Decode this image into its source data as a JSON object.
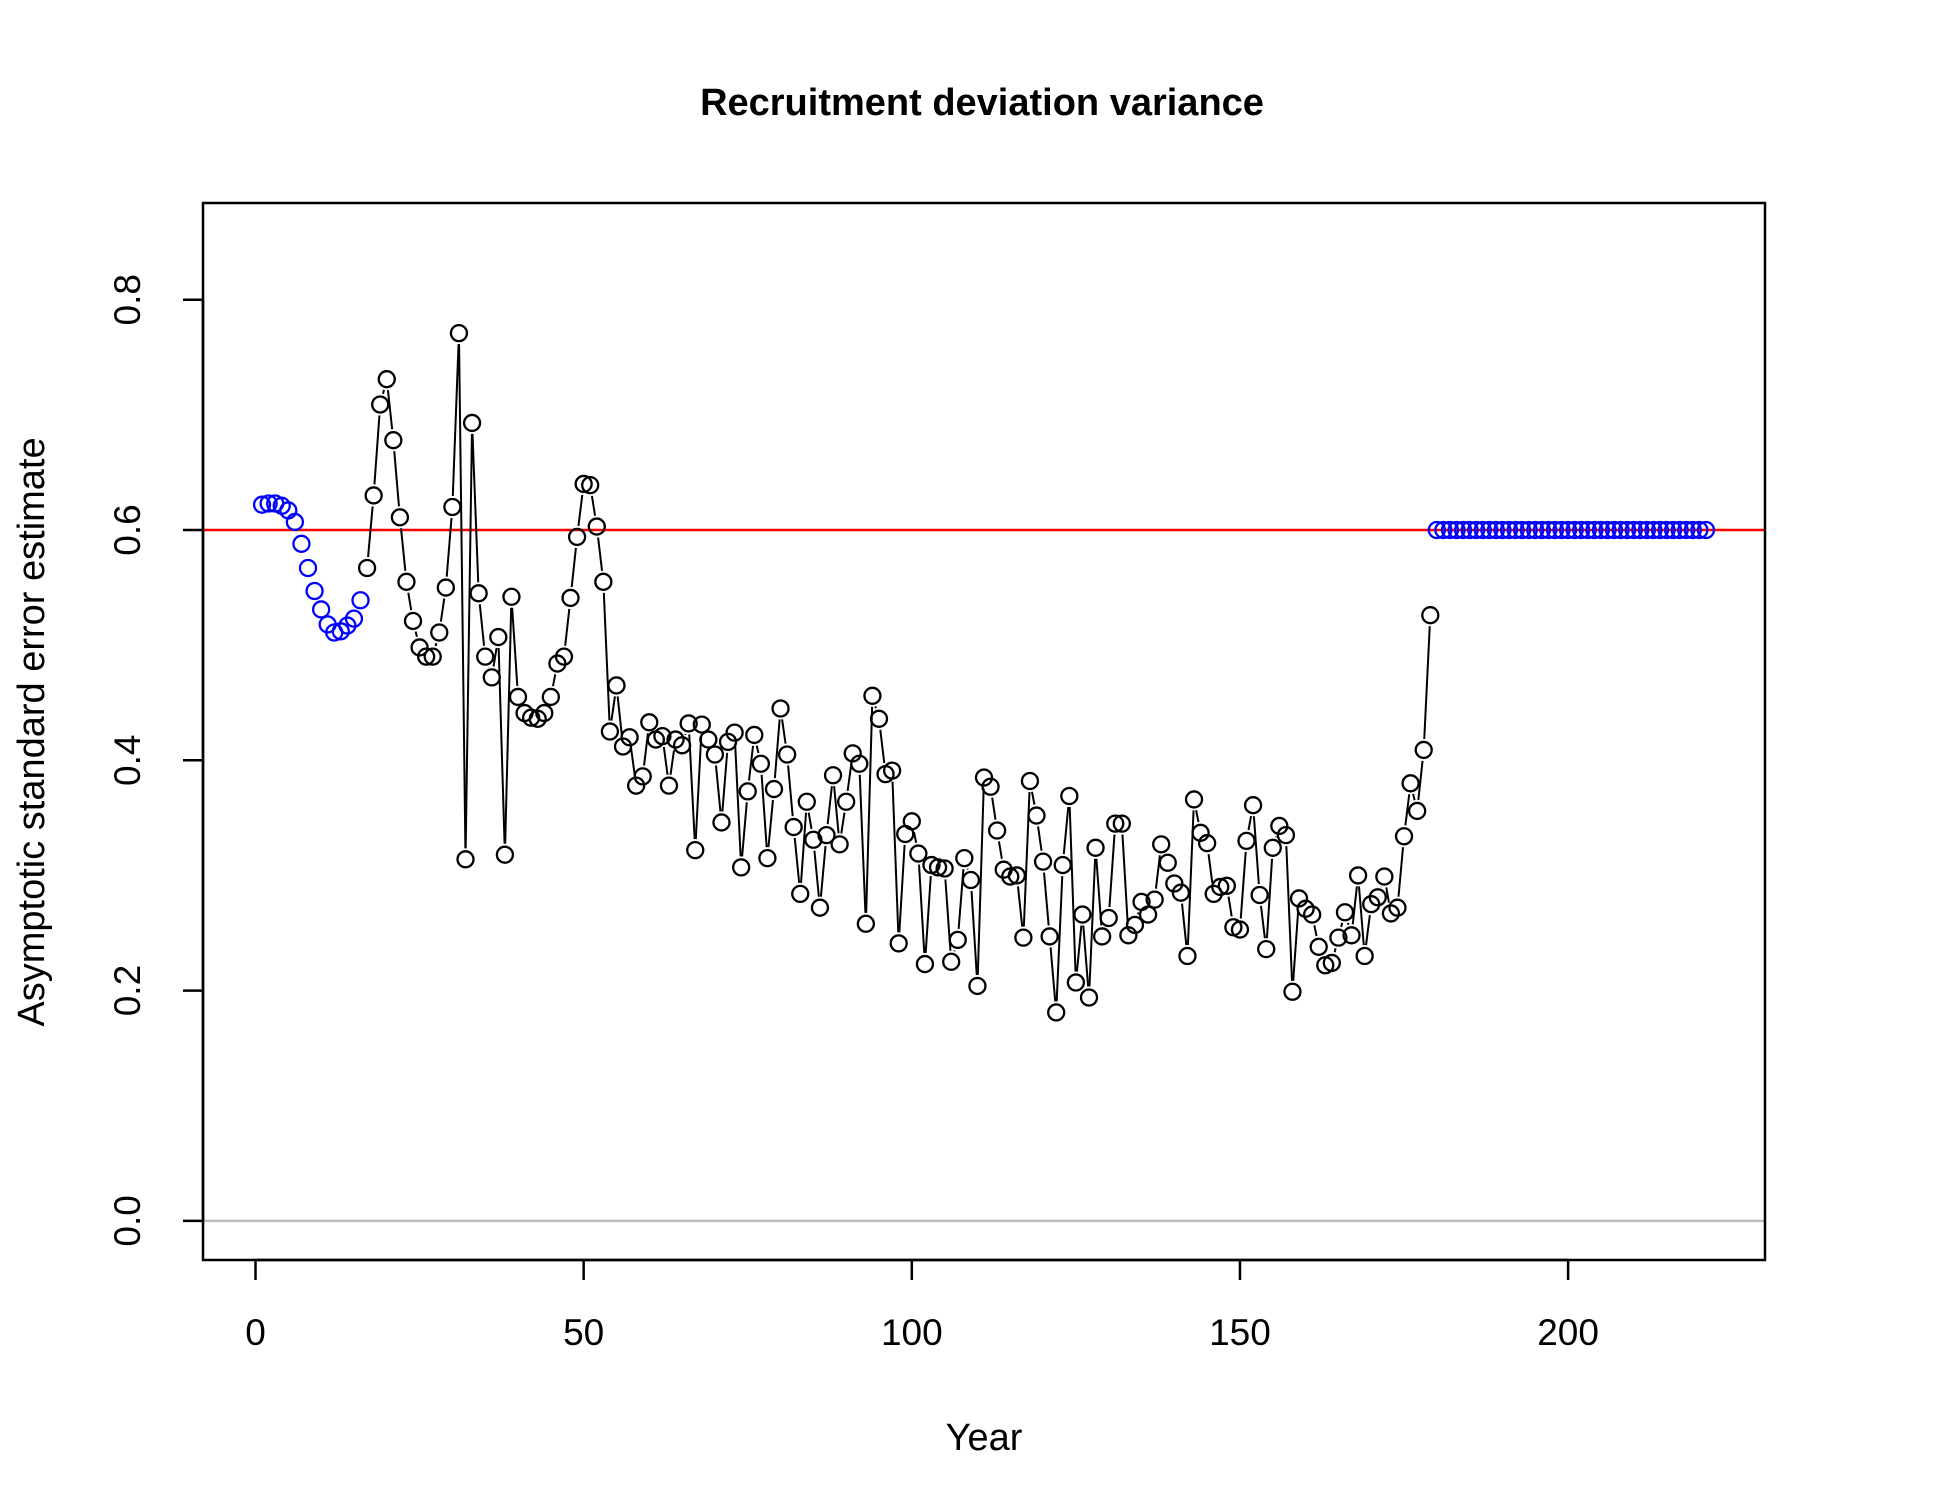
{
  "chart_data": {
    "type": "scatter",
    "title": "Recruitment deviation variance",
    "xlabel": "Year",
    "ylabel": "Asymptotic standard error estimate",
    "xlim": [
      -8,
      230
    ],
    "ylim": [
      -0.034,
      0.884
    ],
    "xticks": [
      0,
      50,
      100,
      150,
      200
    ],
    "yticks": [
      0.0,
      0.2,
      0.4,
      0.6,
      0.8
    ],
    "xtick_labels": [
      "0",
      "50",
      "100",
      "150",
      "200"
    ],
    "ytick_labels": [
      "0.0",
      "0.2",
      "0.4",
      "0.6",
      "0.8"
    ],
    "reference_lines": [
      {
        "y": 0.6,
        "color": "#ff0000"
      },
      {
        "y": 0.0,
        "color": "#bebebe"
      }
    ],
    "grid": false,
    "legend": "none",
    "series": [
      {
        "color": "#0000ff",
        "x": [
          1,
          2,
          3,
          4,
          5,
          6,
          7,
          8,
          9,
          10,
          11,
          12,
          13,
          14,
          15,
          16
        ],
        "y": [
          0.622,
          0.623,
          0.623,
          0.621,
          0.617,
          0.607,
          0.588,
          0.567,
          0.547,
          0.531,
          0.518,
          0.511,
          0.512,
          0.517,
          0.523,
          0.539
        ]
      },
      {
        "color": "#000000",
        "line": "dashed",
        "x": [
          17,
          18,
          19,
          20,
          21,
          22,
          23,
          24,
          25,
          26,
          27,
          28,
          29,
          30,
          31,
          32,
          33,
          34,
          35,
          36,
          37,
          38,
          39,
          40,
          41,
          42,
          43,
          44,
          45,
          46,
          47,
          48,
          49,
          50,
          51,
          52,
          53,
          54,
          55,
          56,
          57,
          58,
          59,
          60,
          61,
          62,
          63,
          64,
          65,
          66,
          67,
          68,
          69,
          70,
          71,
          72,
          73,
          74,
          75,
          76,
          77,
          78,
          79,
          80,
          81,
          82,
          83,
          84,
          85,
          86,
          87,
          88,
          89,
          90,
          91,
          92,
          93,
          94,
          95,
          96,
          97,
          98,
          99,
          100,
          101,
          102,
          103,
          104,
          105,
          106,
          107,
          108,
          109,
          110,
          111,
          112,
          113,
          114,
          115,
          116,
          117,
          118,
          119,
          120,
          121,
          122,
          123,
          124,
          125,
          126,
          127,
          128,
          129,
          130,
          131,
          132,
          133,
          134,
          135,
          136,
          137,
          138,
          139,
          140,
          141,
          142,
          143,
          144,
          145,
          146,
          147,
          148,
          149,
          150,
          151,
          152,
          153,
          154,
          155,
          156,
          157,
          158,
          159,
          160,
          161,
          162,
          163,
          164,
          165,
          166,
          167,
          168,
          169,
          170,
          171,
          172,
          173,
          174,
          175,
          176,
          177,
          178,
          179
        ],
        "y": [
          0.567,
          0.63,
          0.709,
          0.731,
          0.678,
          0.611,
          0.555,
          0.521,
          0.498,
          0.49,
          0.49,
          0.511,
          0.55,
          0.62,
          0.771,
          0.314,
          0.693,
          0.545,
          0.49,
          0.472,
          0.507,
          0.318,
          0.542,
          0.455,
          0.441,
          0.437,
          0.436,
          0.441,
          0.455,
          0.484,
          0.49,
          0.541,
          0.594,
          0.64,
          0.639,
          0.603,
          0.555,
          0.425,
          0.465,
          0.412,
          0.42,
          0.378,
          0.386,
          0.433,
          0.418,
          0.421,
          0.378,
          0.418,
          0.413,
          0.432,
          0.322,
          0.431,
          0.418,
          0.405,
          0.346,
          0.416,
          0.424,
          0.307,
          0.373,
          0.422,
          0.397,
          0.315,
          0.375,
          0.445,
          0.405,
          0.342,
          0.284,
          0.364,
          0.331,
          0.272,
          0.335,
          0.387,
          0.327,
          0.364,
          0.406,
          0.397,
          0.258,
          0.456,
          0.436,
          0.388,
          0.391,
          0.241,
          0.336,
          0.347,
          0.319,
          0.223,
          0.309,
          0.307,
          0.306,
          0.225,
          0.244,
          0.315,
          0.296,
          0.204,
          0.385,
          0.377,
          0.339,
          0.305,
          0.299,
          0.3,
          0.246,
          0.382,
          0.352,
          0.312,
          0.247,
          0.181,
          0.309,
          0.369,
          0.207,
          0.266,
          0.194,
          0.324,
          0.247,
          0.263,
          0.345,
          0.345,
          0.248,
          0.257,
          0.277,
          0.266,
          0.279,
          0.327,
          0.311,
          0.293,
          0.285,
          0.23,
          0.366,
          0.337,
          0.328,
          0.284,
          0.29,
          0.291,
          0.255,
          0.253,
          0.33,
          0.361,
          0.283,
          0.236,
          0.324,
          0.343,
          0.335,
          0.199,
          0.28,
          0.271,
          0.266,
          0.238,
          0.222,
          0.224,
          0.246,
          0.268,
          0.248,
          0.3,
          0.23,
          0.275,
          0.281,
          0.299,
          0.267,
          0.272,
          0.334,
          0.38,
          0.356,
          0.409,
          0.526
        ]
      },
      {
        "color": "#0000ff",
        "x": [
          180,
          181,
          182,
          183,
          184,
          185,
          186,
          187,
          188,
          189,
          190,
          191,
          192,
          193,
          194,
          195,
          196,
          197,
          198,
          199,
          200,
          201,
          202,
          203,
          204,
          205,
          206,
          207,
          208,
          209,
          210,
          211,
          212,
          213,
          214,
          215,
          216,
          217,
          218,
          219,
          220,
          221
        ],
        "y": [
          0.6,
          0.6,
          0.6,
          0.6,
          0.6,
          0.6,
          0.6,
          0.6,
          0.6,
          0.6,
          0.6,
          0.6,
          0.6,
          0.6,
          0.6,
          0.6,
          0.6,
          0.6,
          0.6,
          0.6,
          0.6,
          0.6,
          0.6,
          0.6,
          0.6,
          0.6,
          0.6,
          0.6,
          0.6,
          0.6,
          0.6,
          0.6,
          0.6,
          0.6,
          0.6,
          0.6,
          0.6,
          0.6,
          0.6,
          0.6,
          0.6,
          0.6
        ]
      }
    ]
  }
}
